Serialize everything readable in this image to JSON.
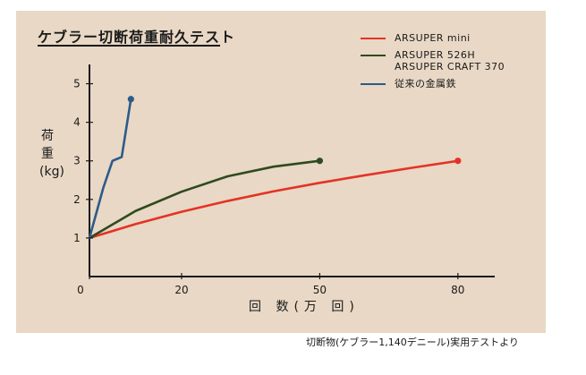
{
  "chart_data": {
    "type": "line",
    "title": "ケブラー切断荷重耐久テスト",
    "xlabel": "回 数(万 回)",
    "ylabel": "荷重(kg)",
    "xlim": [
      0,
      88
    ],
    "ylim": [
      0,
      5.5
    ],
    "xticks": [
      "0",
      "20",
      "50",
      "80"
    ],
    "yticks": [
      "1",
      "2",
      "3",
      "4",
      "5"
    ],
    "legend_position": "top-right",
    "series": [
      {
        "name": "ARSUPER mini",
        "color": "#e53226",
        "x": [
          0,
          10,
          20,
          30,
          40,
          50,
          60,
          70,
          80
        ],
        "y": [
          1.0,
          1.36,
          1.68,
          1.96,
          2.21,
          2.43,
          2.63,
          2.82,
          3.0
        ]
      },
      {
        "name": "ARSUPER 526H\nARSUPER CRAFT 370",
        "color": "#2f4a1e",
        "x": [
          0,
          10,
          20,
          30,
          40,
          50
        ],
        "y": [
          1.0,
          1.7,
          2.2,
          2.6,
          2.85,
          3.0
        ]
      },
      {
        "name": "従来の金属鉄",
        "color": "#2d5b8a",
        "x": [
          0,
          3,
          5,
          6,
          7,
          9
        ],
        "y": [
          1.0,
          2.3,
          3.0,
          3.05,
          3.1,
          4.6
        ]
      }
    ]
  },
  "footer": {
    "caption": "切断物(ケブラー1,140デニール)実用テストより"
  },
  "colors": {
    "panel_background": "#e8d8c5",
    "axis": "#1a1a1a"
  }
}
